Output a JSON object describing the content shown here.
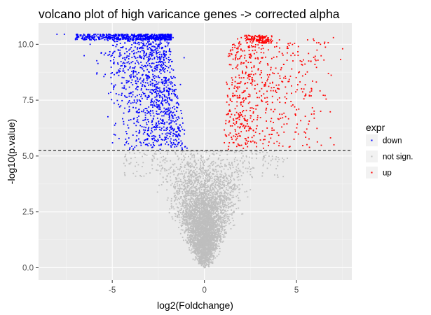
{
  "chart_data": {
    "type": "scatter",
    "title": "volcano plot of high varicance genes -> corrected alpha",
    "xlabel": "log2(Foldchange)",
    "ylabel": "-log10(p.value)",
    "xlim": [
      -9.0,
      8.0
    ],
    "ylim": [
      -0.55,
      10.95
    ],
    "xticks": [
      -5,
      0,
      5
    ],
    "yticks": [
      0.0,
      2.5,
      5.0,
      7.5,
      10.0
    ],
    "xtick_labels": [
      "-5",
      "0",
      "5"
    ],
    "ytick_labels": [
      "0.0",
      "2.5",
      "5.0",
      "7.5",
      "10.0"
    ],
    "threshold_y": 5.25,
    "grid": true,
    "legend": {
      "title": "expr",
      "placement": "right",
      "entries": [
        {
          "label": "down",
          "color": "#0000ff"
        },
        {
          "label": "not sign.",
          "color": "#bebebe"
        },
        {
          "label": "up",
          "color": "#ff0000"
        }
      ]
    },
    "series": [
      {
        "name": "down",
        "color": "#0000ff",
        "marker": "point",
        "approx_points": [
          [
            -8.0,
            10.45
          ],
          [
            -7.6,
            10.45
          ],
          [
            -6.9,
            10.45
          ],
          [
            -6.3,
            10.45
          ],
          [
            -5.9,
            10.45
          ],
          [
            -5.5,
            10.45
          ],
          [
            -5.2,
            10.45
          ],
          [
            -4.8,
            10.45
          ],
          [
            -4.5,
            10.45
          ],
          [
            -4.2,
            10.45
          ],
          [
            -3.8,
            10.45
          ],
          [
            -3.4,
            10.45
          ],
          [
            -3.1,
            10.45
          ],
          [
            -2.7,
            10.45
          ],
          [
            -2.3,
            10.45
          ],
          [
            -2.0,
            10.45
          ],
          [
            -1.7,
            10.3
          ],
          [
            -6.2,
            10.0
          ],
          [
            -5.6,
            9.6
          ],
          [
            -4.9,
            9.2
          ],
          [
            -4.4,
            8.9
          ],
          [
            -4.0,
            8.5
          ],
          [
            -3.6,
            8.1
          ],
          [
            -3.2,
            7.7
          ],
          [
            -2.9,
            7.3
          ],
          [
            -2.6,
            6.9
          ],
          [
            -2.3,
            6.6
          ],
          [
            -2.0,
            6.2
          ],
          [
            -1.7,
            5.9
          ],
          [
            -1.4,
            5.6
          ],
          [
            -1.2,
            5.3
          ],
          [
            -5.2,
            7.8
          ],
          [
            -4.6,
            7.2
          ],
          [
            -4.1,
            6.6
          ],
          [
            -3.7,
            6.1
          ],
          [
            -3.3,
            5.6
          ],
          [
            -2.8,
            5.4
          ],
          [
            -2.4,
            5.3
          ],
          [
            -1.8,
            5.4
          ],
          [
            -1.5,
            7.0
          ],
          [
            -1.3,
            8.2
          ],
          [
            -1.1,
            9.4
          ],
          [
            -2.1,
            9.9
          ],
          [
            -3.0,
            9.3
          ],
          [
            -3.9,
            10.2
          ],
          [
            -4.8,
            9.9
          ]
        ]
      },
      {
        "name": "not sign.",
        "color": "#bebebe",
        "marker": "point",
        "approx_points": [
          [
            0.0,
            0.0
          ],
          [
            -0.1,
            0.2
          ],
          [
            0.1,
            0.3
          ],
          [
            -0.3,
            0.5
          ],
          [
            0.3,
            0.6
          ],
          [
            -0.4,
            1.0
          ],
          [
            0.4,
            1.1
          ],
          [
            -0.6,
            1.6
          ],
          [
            0.6,
            1.7
          ],
          [
            -0.8,
            2.2
          ],
          [
            0.8,
            2.3
          ],
          [
            -1.0,
            2.8
          ],
          [
            1.0,
            2.9
          ],
          [
            -1.2,
            3.4
          ],
          [
            1.2,
            3.5
          ],
          [
            -1.5,
            4.0
          ],
          [
            1.5,
            4.1
          ],
          [
            -1.8,
            4.5
          ],
          [
            1.8,
            4.6
          ],
          [
            -2.1,
            4.9
          ],
          [
            2.1,
            5.0
          ],
          [
            -2.7,
            5.1
          ],
          [
            2.8,
            5.1
          ],
          [
            -3.5,
            5.15
          ],
          [
            3.4,
            5.15
          ],
          [
            4.5,
            4.9
          ],
          [
            -2.4,
            4.2
          ],
          [
            2.5,
            4.3
          ]
        ]
      },
      {
        "name": "up",
        "color": "#ff0000",
        "marker": "point",
        "approx_points": [
          [
            1.3,
            5.3
          ],
          [
            1.6,
            5.6
          ],
          [
            1.9,
            5.9
          ],
          [
            2.2,
            6.3
          ],
          [
            2.5,
            6.7
          ],
          [
            2.8,
            7.1
          ],
          [
            3.1,
            7.5
          ],
          [
            3.4,
            7.9
          ],
          [
            3.7,
            8.3
          ],
          [
            4.0,
            8.7
          ],
          [
            4.3,
            9.1
          ],
          [
            4.7,
            9.5
          ],
          [
            5.1,
            9.9
          ],
          [
            5.6,
            10.2
          ],
          [
            6.3,
            10.0
          ],
          [
            7.0,
            10.3
          ],
          [
            7.5,
            9.8
          ],
          [
            1.6,
            10.0
          ],
          [
            2.0,
            10.3
          ],
          [
            2.4,
            10.4
          ],
          [
            2.7,
            10.3
          ],
          [
            3.0,
            10.4
          ],
          [
            3.3,
            10.3
          ],
          [
            1.2,
            8.3
          ],
          [
            1.4,
            7.0
          ],
          [
            1.8,
            8.9
          ],
          [
            2.2,
            9.5
          ],
          [
            2.6,
            8.5
          ],
          [
            3.0,
            6.0
          ],
          [
            3.6,
            5.8
          ],
          [
            4.2,
            6.3
          ],
          [
            4.9,
            7.2
          ],
          [
            5.4,
            8.0
          ],
          [
            6.0,
            9.1
          ],
          [
            4.6,
            5.4
          ]
        ]
      }
    ]
  }
}
